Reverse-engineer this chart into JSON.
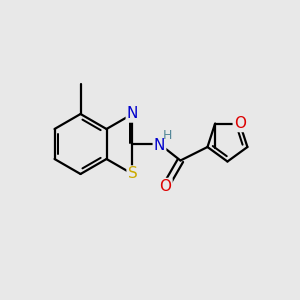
{
  "background_color": "#e8e8e8",
  "atom_colors": {
    "C": "#000000",
    "N": "#0000cc",
    "O": "#dd0000",
    "S": "#ccaa00",
    "H": "#558899"
  },
  "bond_color": "#000000",
  "bond_width": 1.6,
  "font_size_atom": 10,
  "bg": "#e8e8e8"
}
